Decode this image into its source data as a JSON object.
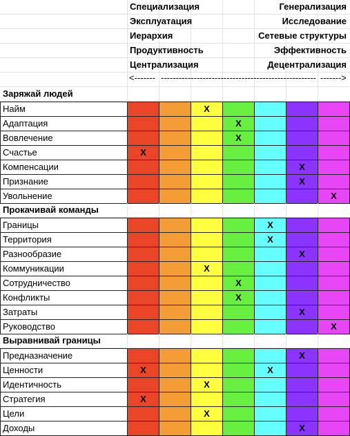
{
  "header": {
    "rows": [
      {
        "left": "Специализация",
        "right": "Генерализация"
      },
      {
        "left": "Эксплуатация",
        "right": "Исследование"
      },
      {
        "left": "Иерархия",
        "right": "Сетевые структуры"
      },
      {
        "left": "Продуктивность",
        "right": "Эффективность"
      },
      {
        "left": "Централизация",
        "right": "Децентрализация"
      }
    ],
    "arrows": {
      "left": "<-------",
      "middle": "----------------------------------------------------------------------------------",
      "right": "------->"
    }
  },
  "colors": [
    "#ea4429",
    "#f49d37",
    "#ffff3f",
    "#69ef3f",
    "#66ffff",
    "#8b34ff",
    "#e745f5"
  ],
  "sections": [
    {
      "title": "Заряжай людей",
      "items": [
        {
          "label": "Найм",
          "cells": [
            null,
            null,
            "X",
            null,
            null,
            null,
            null
          ]
        },
        {
          "label": "Адаптация",
          "cells": [
            null,
            null,
            null,
            "X",
            null,
            null,
            null
          ]
        },
        {
          "label": "Вовлечение",
          "cells": [
            null,
            null,
            null,
            "X",
            null,
            null,
            null
          ]
        },
        {
          "label": "Счастье",
          "cells": [
            "X",
            null,
            null,
            null,
            null,
            null,
            null
          ]
        },
        {
          "label": "Компенсации",
          "cells": [
            null,
            null,
            null,
            null,
            null,
            "X",
            null
          ]
        },
        {
          "label": "Признание",
          "cells": [
            null,
            null,
            null,
            null,
            null,
            "X",
            null
          ]
        },
        {
          "label": "Увольнение",
          "cells": [
            null,
            null,
            null,
            null,
            null,
            null,
            "X"
          ]
        }
      ]
    },
    {
      "title": "Прокачивай команды",
      "items": [
        {
          "label": "Границы",
          "cells": [
            null,
            null,
            null,
            null,
            "X",
            null,
            null
          ]
        },
        {
          "label": "Территория",
          "cells": [
            null,
            null,
            null,
            null,
            "X",
            null,
            null
          ]
        },
        {
          "label": "Разнообразие",
          "cells": [
            null,
            null,
            null,
            null,
            null,
            "X",
            null
          ]
        },
        {
          "label": "Коммуникации",
          "cells": [
            null,
            null,
            "X",
            null,
            null,
            null,
            null
          ]
        },
        {
          "label": "Сотрудничество",
          "cells": [
            null,
            null,
            null,
            "X",
            null,
            null,
            null
          ]
        },
        {
          "label": "Конфликты",
          "cells": [
            null,
            null,
            null,
            "X",
            null,
            null,
            null
          ]
        },
        {
          "label": "Затраты",
          "cells": [
            null,
            null,
            null,
            null,
            null,
            "X",
            null
          ]
        },
        {
          "label": "Руководство",
          "cells": [
            null,
            null,
            null,
            null,
            null,
            null,
            "X"
          ]
        }
      ]
    },
    {
      "title": "Выравнивай границы",
      "items": [
        {
          "label": "Предназначение",
          "cells": [
            null,
            null,
            null,
            null,
            null,
            "X",
            null
          ]
        },
        {
          "label": "Ценности",
          "cells": [
            "X",
            null,
            null,
            null,
            "X",
            null,
            null
          ]
        },
        {
          "label": "Идентичность",
          "cells": [
            null,
            null,
            "X",
            null,
            null,
            null,
            null
          ]
        },
        {
          "label": "Стратегия",
          "cells": [
            "X",
            null,
            null,
            null,
            null,
            null,
            null
          ]
        },
        {
          "label": "Цели",
          "cells": [
            null,
            null,
            "X",
            null,
            null,
            null,
            null
          ]
        },
        {
          "label": "Доходы",
          "cells": [
            null,
            null,
            null,
            null,
            null,
            "X",
            null
          ]
        }
      ]
    }
  ]
}
